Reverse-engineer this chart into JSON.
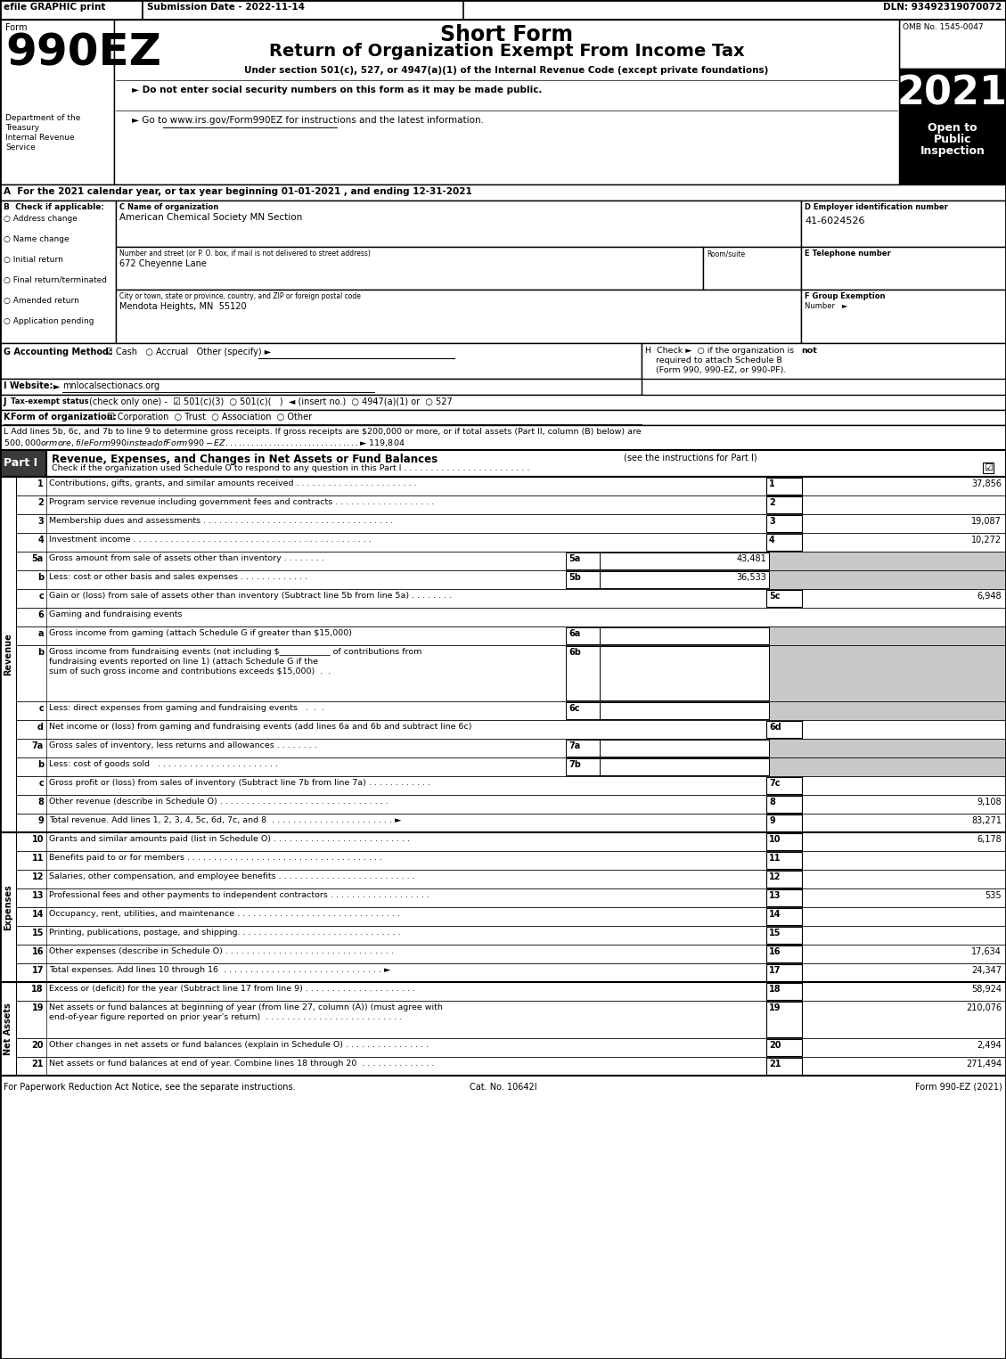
{
  "efile_text": "efile GRAPHIC print",
  "submission_date": "Submission Date - 2022-11-14",
  "dln": "DLN: 93492319070072",
  "form_number": "990EZ",
  "form_label": "Form",
  "short_form_title": "Short Form",
  "main_title": "Return of Organization Exempt From Income Tax",
  "subtitle": "Under section 501(c), 527, or 4947(a)(1) of the Internal Revenue Code (except private foundations)",
  "bullet1": "► Do not enter social security numbers on this form as it may be made public.",
  "bullet2": "► Go to www.irs.gov/Form990EZ for instructions and the latest information.",
  "omb": "OMB No. 1545-0047",
  "year": "2021",
  "dept1": "Department of the",
  "dept2": "Treasury",
  "dept3": "Internal Revenue",
  "dept4": "Service",
  "section_a": "A  For the 2021 calendar year, or tax year beginning 01-01-2021 , and ending 12-31-2021",
  "section_b_label": "B  Check if applicable:",
  "checkboxes_b": [
    "Address change",
    "Name change",
    "Initial return",
    "Final return/terminated",
    "Amended return",
    "Application pending"
  ],
  "section_c_label": "C Name of organization",
  "org_name": "American Chemical Society MN Section",
  "street_label": "Number and street (or P. O. box, if mail is not delivered to street address)",
  "room_label": "Room/suite",
  "street_value": "672 Cheyenne Lane",
  "city_label": "City or town, state or province, country, and ZIP or foreign postal code",
  "city_value": "Mendota Heights, MN  55120",
  "section_d_label": "D Employer identification number",
  "ein": "41-6024526",
  "section_e_label": "E Telephone number",
  "section_f_label": "F Group Exemption",
  "section_f2": "Number   ►",
  "footer_left": "For Paperwork Reduction Act Notice, see the separate instructions.",
  "footer_cat": "Cat. No. 10642I",
  "footer_right": "Form 990-EZ (2021)"
}
